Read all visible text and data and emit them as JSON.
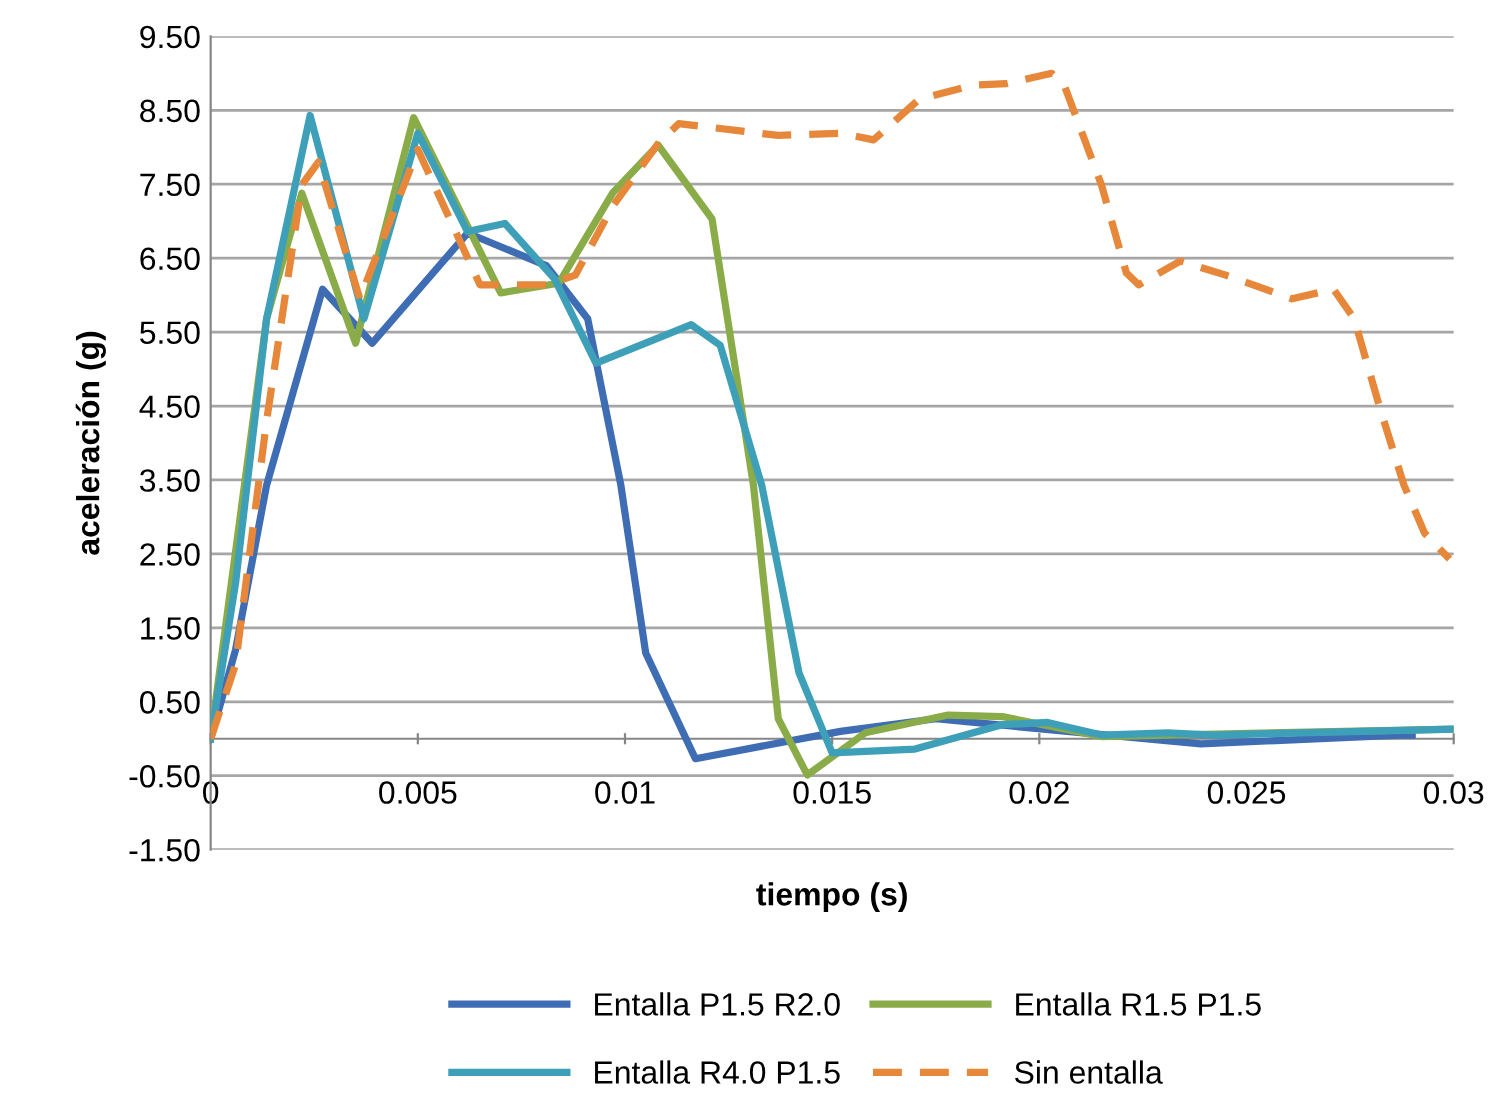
{
  "chart_data": {
    "type": "line",
    "xlabel": "tiempo (s)",
    "ylabel": "aceleración (g)",
    "xlim": [
      0,
      0.03
    ],
    "xticks": [
      0,
      0.005,
      0.01,
      0.015,
      0.02,
      0.025,
      0.03
    ],
    "ylim": [
      -1.5,
      9.5
    ],
    "yticks": [
      {
        "value": -1.5,
        "label": "-1.50"
      },
      {
        "value": -0.5,
        "label": "-0.50"
      },
      {
        "value": 0.5,
        "label": "0.50"
      },
      {
        "value": 1.5,
        "label": "1.50"
      },
      {
        "value": 2.5,
        "label": "2.50"
      },
      {
        "value": 3.5,
        "label": "3.50"
      },
      {
        "value": 4.5,
        "label": "4.50"
      },
      {
        "value": 5.5,
        "label": "5.50"
      },
      {
        "value": 6.5,
        "label": "6.50"
      },
      {
        "value": 7.5,
        "label": "7.50"
      },
      {
        "value": 8.5,
        "label": "8.50"
      },
      {
        "value": 9.5,
        "label": "9.50"
      }
    ],
    "grid": "y",
    "legend": "bottom",
    "marker": "none",
    "series": [
      {
        "name": "Entalla P1.5 R2.0",
        "color": "#3f6db4",
        "line_style": "solid",
        "x": [
          0,
          0.0006,
          0.00135,
          0.0027,
          0.0039,
          0.0062,
          0.0081,
          0.0091,
          0.0099,
          0.0105,
          0.0117,
          0.0152,
          0.0175,
          0.0199,
          0.0239,
          0.0287,
          0.029
        ],
        "values": [
          0,
          1.2,
          3.43,
          6.08,
          5.35,
          6.84,
          6.4,
          5.68,
          3.43,
          1.16,
          -0.27,
          0.1,
          0.27,
          0.14,
          -0.07,
          0.05,
          0.05
        ]
      },
      {
        "name": "Entalla R1.5 P1.5",
        "color": "#8aac48",
        "line_style": "solid",
        "x": [
          0,
          0.00135,
          0.0022,
          0.0035,
          0.0049,
          0.007,
          0.0084,
          0.0097,
          0.0108,
          0.0121,
          0.0131,
          0.0137,
          0.0144,
          0.0158,
          0.0178,
          0.0191,
          0.0215,
          0.03
        ],
        "values": [
          0,
          5.68,
          7.38,
          5.35,
          8.4,
          6.03,
          6.16,
          7.38,
          8.03,
          7.03,
          3.43,
          0.27,
          -0.49,
          0.08,
          0.32,
          0.3,
          0.03,
          0.13
        ]
      },
      {
        "name": "Entalla R4.0 P1.5",
        "color": "#3ea0b8",
        "line_style": "solid",
        "x": [
          0,
          0.0006,
          0.00135,
          0.0024,
          0.0037,
          0.005,
          0.0062,
          0.0071,
          0.0083,
          0.0093,
          0.0116,
          0.0123,
          0.0133,
          0.0142,
          0.015,
          0.017,
          0.0191,
          0.0202,
          0.0215,
          0.0231,
          0.0242,
          0.03
        ],
        "values": [
          0,
          2.1,
          5.68,
          8.43,
          5.68,
          8.19,
          6.86,
          6.97,
          6.22,
          5.08,
          5.6,
          5.32,
          3.43,
          0.89,
          -0.19,
          -0.14,
          0.19,
          0.22,
          0.05,
          0.08,
          0.05,
          0.13
        ]
      },
      {
        "name": "Sin entalla",
        "color": "#e6873a",
        "line_style": "dashed",
        "x": [
          0,
          0.0006,
          0.00135,
          0.0022,
          0.0026,
          0.0036,
          0.005,
          0.0065,
          0.0081,
          0.0088,
          0.0097,
          0.0108,
          0.0113,
          0.0137,
          0.0152,
          0.016,
          0.0171,
          0.0184,
          0.0192,
          0.0203,
          0.0206,
          0.0215,
          0.0221,
          0.0224,
          0.0234,
          0.0245,
          0.0261,
          0.0271,
          0.0276,
          0.0282,
          0.0288,
          0.0293,
          0.0299
        ],
        "values": [
          0,
          1.0,
          4.3,
          7.49,
          7.8,
          5.95,
          7.97,
          6.14,
          6.14,
          6.27,
          7.2,
          8.05,
          8.32,
          8.16,
          8.19,
          8.1,
          8.65,
          8.84,
          8.86,
          9.0,
          8.84,
          7.49,
          6.3,
          6.14,
          6.46,
          6.27,
          5.95,
          6.08,
          5.68,
          4.51,
          3.43,
          2.78,
          2.43
        ]
      }
    ]
  }
}
